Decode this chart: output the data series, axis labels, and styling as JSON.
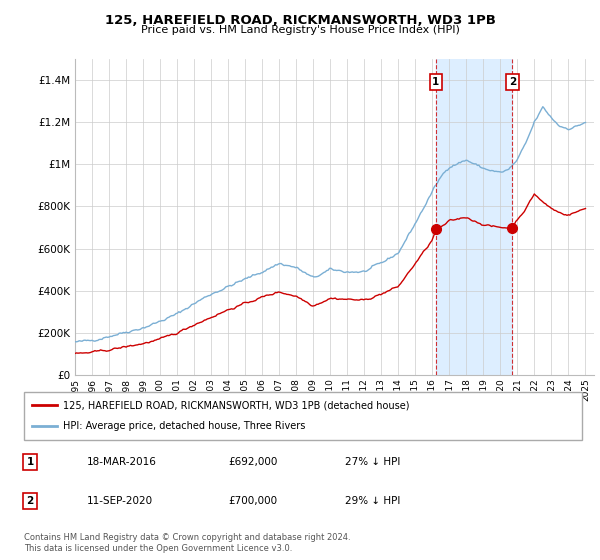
{
  "title": "125, HAREFIELD ROAD, RICKMANSWORTH, WD3 1PB",
  "subtitle": "Price paid vs. HM Land Registry's House Price Index (HPI)",
  "ylim": [
    0,
    1500000
  ],
  "yticks": [
    0,
    200000,
    400000,
    600000,
    800000,
    1000000,
    1200000,
    1400000
  ],
  "ytick_labels": [
    "£0",
    "£200K",
    "£400K",
    "£600K",
    "£800K",
    "£1M",
    "£1.2M",
    "£1.4M"
  ],
  "xlim_start": 1995.0,
  "xlim_end": 2025.5,
  "hpi_color": "#7bafd4",
  "price_color": "#cc0000",
  "transaction1_date": 2016.21,
  "transaction1_price": 692000,
  "transaction1_label": "1",
  "transaction2_date": 2020.7,
  "transaction2_price": 700000,
  "transaction2_label": "2",
  "shade_color": "#ddeeff",
  "legend_house_label": "125, HAREFIELD ROAD, RICKMANSWORTH, WD3 1PB (detached house)",
  "legend_hpi_label": "HPI: Average price, detached house, Three Rivers",
  "table_row1": [
    "1",
    "18-MAR-2016",
    "£692,000",
    "27% ↓ HPI"
  ],
  "table_row2": [
    "2",
    "11-SEP-2020",
    "£700,000",
    "29% ↓ HPI"
  ],
  "footnote": "Contains HM Land Registry data © Crown copyright and database right 2024.\nThis data is licensed under the Open Government Licence v3.0.",
  "background_color": "#ffffff",
  "grid_color": "#cccccc"
}
